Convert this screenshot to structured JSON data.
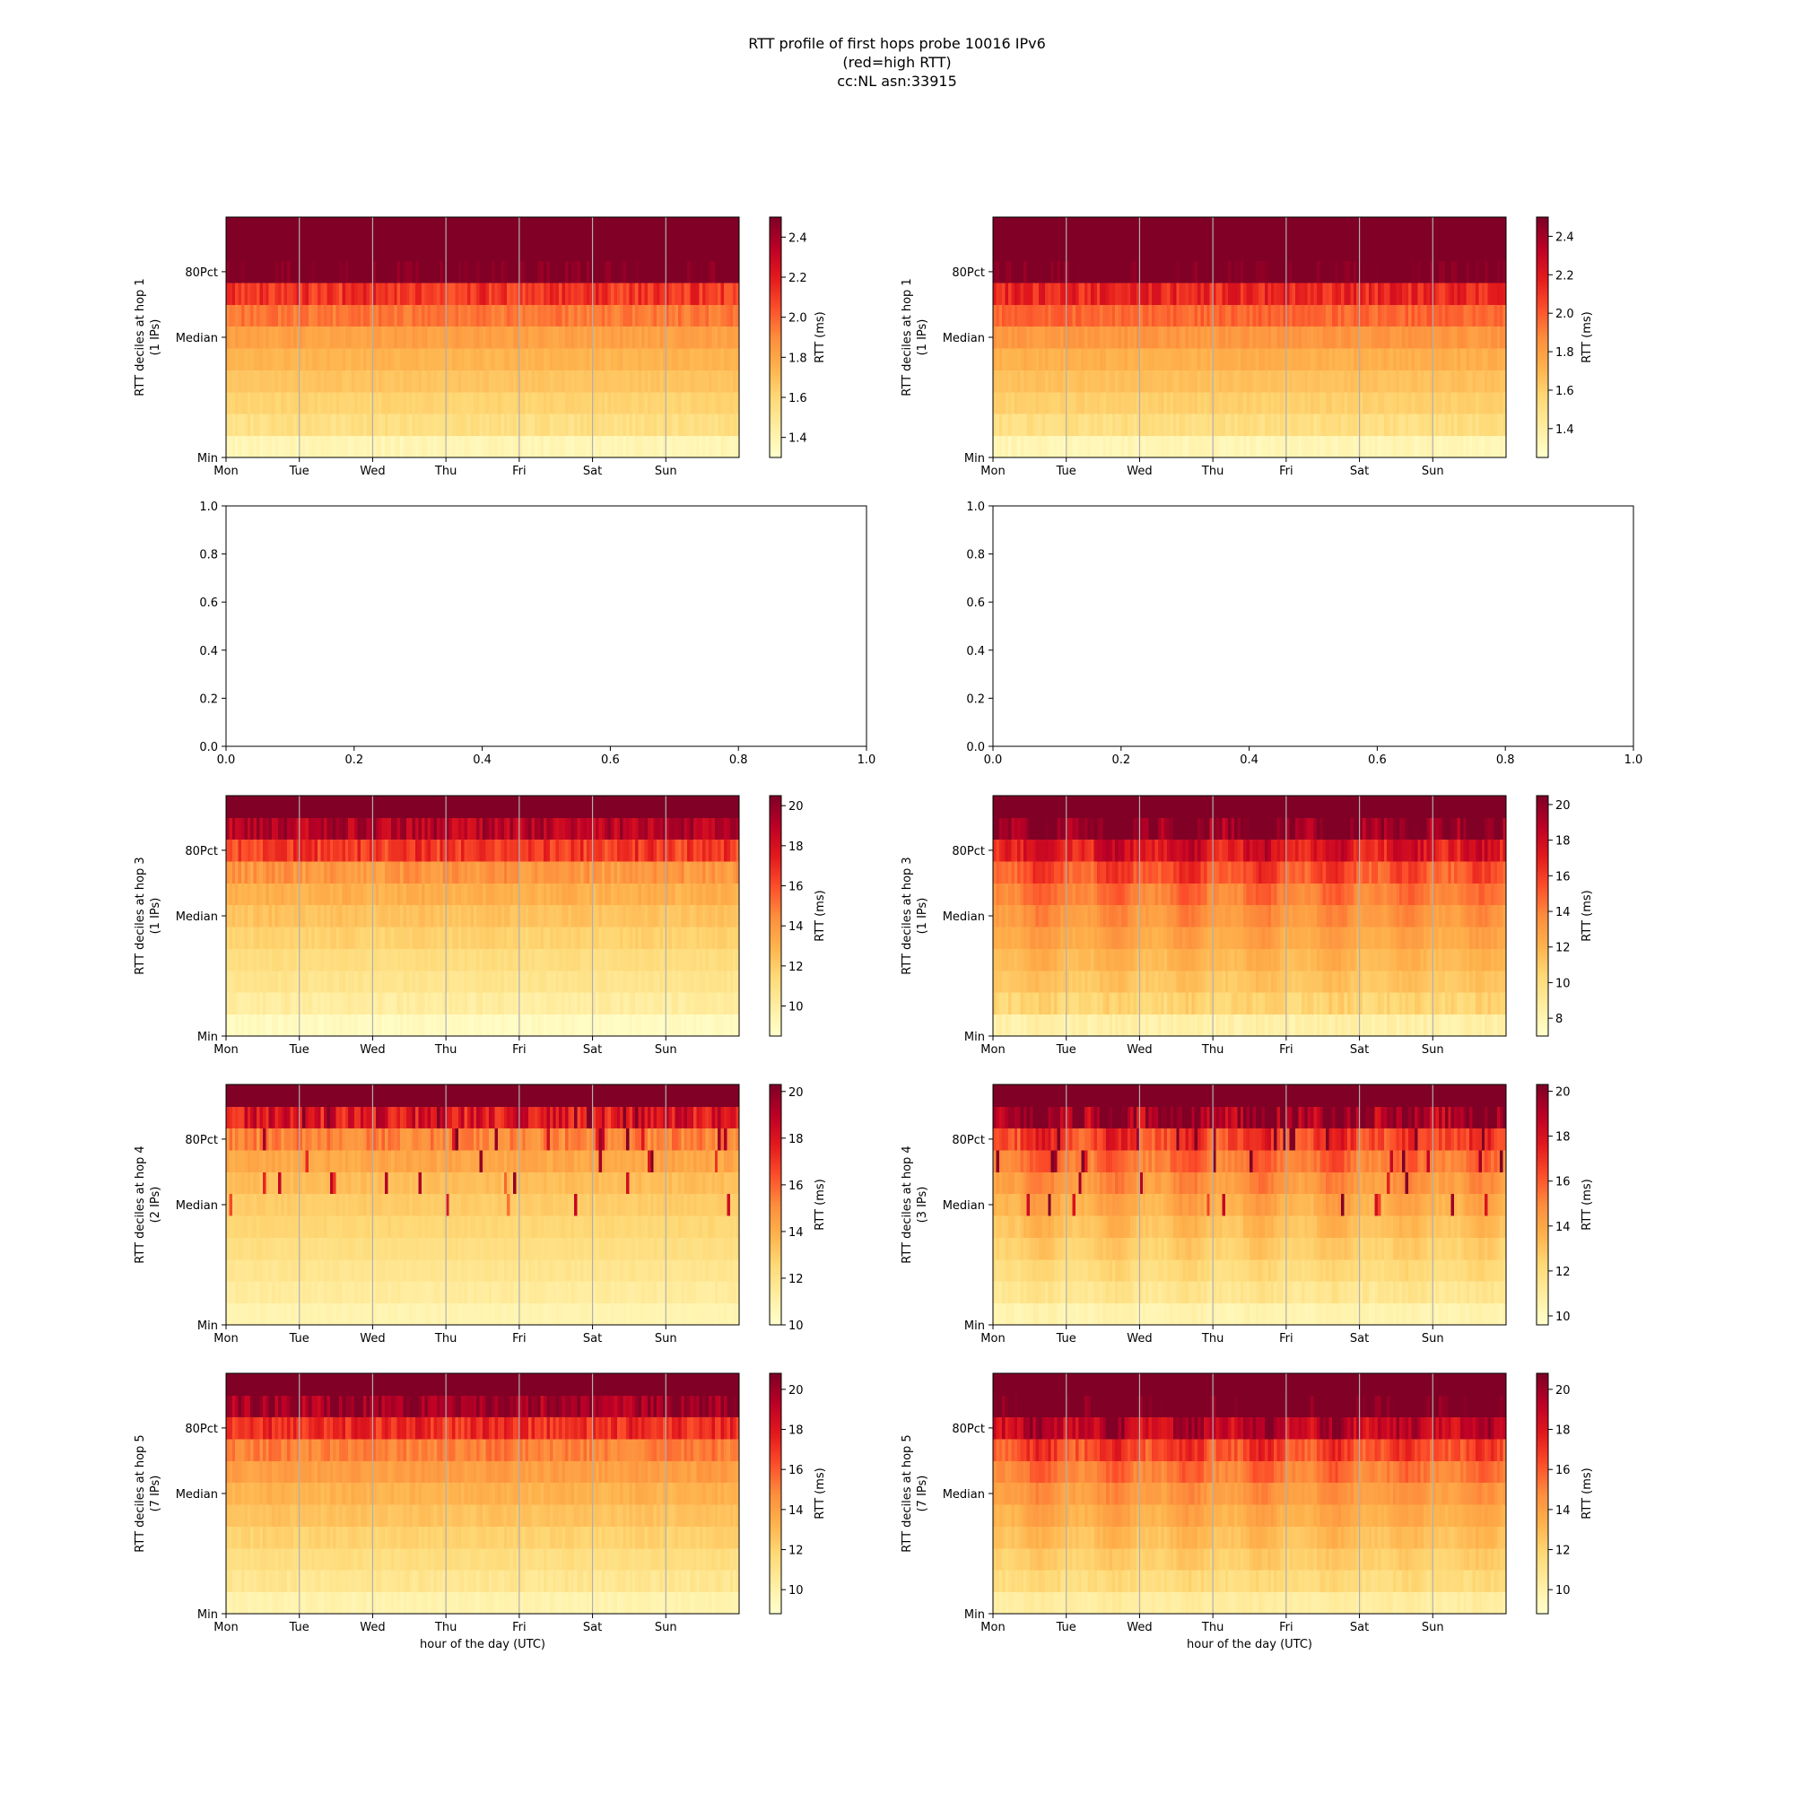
{
  "figure": {
    "title_lines": [
      "RTT profile of first hops probe 10016 IPv6",
      "(red=high RTT)",
      "cc:NL asn:33915"
    ]
  },
  "colors": {
    "colormap": [
      "#ffffcc",
      "#ffeda0",
      "#fed976",
      "#feb24c",
      "#fd8d3c",
      "#fc4e2a",
      "#e31a1c",
      "#bd0026",
      "#800026"
    ],
    "gridline": "#b0b0b0"
  },
  "chart_data": [
    {
      "type": "heatmap",
      "panel": "row1-left",
      "ylabel": "RTT deciles at hop 1\n(1 IPs)",
      "ytick_labels": [
        "Min",
        "Median",
        "80Pct"
      ],
      "xtick_labels": [
        "Mon",
        "Tue",
        "Wed",
        "Thu",
        "Fri",
        "Sat",
        "Sun"
      ],
      "xlabel": "",
      "colorbar": {
        "label": "RTT (ms)",
        "vmin": 1.3,
        "vmax": 2.5,
        "ticks": [
          1.4,
          1.6,
          1.8,
          2.0,
          2.2,
          2.4
        ]
      },
      "decile_rtt_ms": [
        1.38,
        1.55,
        1.62,
        1.68,
        1.74,
        1.82,
        1.95,
        2.12,
        2.55,
        2.8,
        2.9
      ],
      "pattern": "flat",
      "seed": 11
    },
    {
      "type": "heatmap",
      "panel": "row1-right",
      "ylabel": "RTT deciles at hop 1\n(1 IPs)",
      "ytick_labels": [
        "Min",
        "Median",
        "80Pct"
      ],
      "xtick_labels": [
        "Mon",
        "Tue",
        "Wed",
        "Thu",
        "Fri",
        "Sat",
        "Sun"
      ],
      "xlabel": "",
      "colorbar": {
        "label": "RTT (ms)",
        "vmin": 1.25,
        "vmax": 2.5,
        "ticks": [
          1.4,
          1.6,
          1.8,
          2.0,
          2.2,
          2.4
        ]
      },
      "decile_rtt_ms": [
        1.33,
        1.52,
        1.6,
        1.66,
        1.73,
        1.83,
        1.97,
        2.15,
        2.55,
        2.8,
        2.9
      ],
      "pattern": "flat",
      "seed": 23
    },
    {
      "type": "empty",
      "panel": "row2-left",
      "xtick_labels": [
        "0.0",
        "0.2",
        "0.4",
        "0.6",
        "0.8",
        "1.0"
      ],
      "ytick_labels": [
        "0.0",
        "0.2",
        "0.4",
        "0.6",
        "0.8",
        "1.0"
      ],
      "xlim": [
        0,
        1
      ],
      "ylim": [
        0,
        1
      ]
    },
    {
      "type": "empty",
      "panel": "row2-right",
      "xtick_labels": [
        "0.0",
        "0.2",
        "0.4",
        "0.6",
        "0.8",
        "1.0"
      ],
      "ytick_labels": [
        "0.0",
        "0.2",
        "0.4",
        "0.6",
        "0.8",
        "1.0"
      ],
      "xlim": [
        0,
        1
      ],
      "ylim": [
        0,
        1
      ]
    },
    {
      "type": "heatmap",
      "panel": "row3-left",
      "ylabel": "RTT deciles at hop 3\n(1 IPs)",
      "ytick_labels": [
        "Min",
        "Median",
        "80Pct"
      ],
      "xtick_labels": [
        "Mon",
        "Tue",
        "Wed",
        "Thu",
        "Fri",
        "Sat",
        "Sun"
      ],
      "xlabel": "",
      "colorbar": {
        "label": "RTT (ms)",
        "vmin": 8.5,
        "vmax": 20.5,
        "ticks": [
          10,
          12,
          14,
          16,
          18,
          20
        ]
      },
      "decile_rtt_ms": [
        8.9,
        10.0,
        10.6,
        11.1,
        11.7,
        12.3,
        13.0,
        14.0,
        16.5,
        19.0,
        22.0
      ],
      "pattern": "mild",
      "seed": 37
    },
    {
      "type": "heatmap",
      "panel": "row3-right",
      "ylabel": "RTT deciles at hop 3\n(1 IPs)",
      "ytick_labels": [
        "Min",
        "Median",
        "80Pct"
      ],
      "xtick_labels": [
        "Mon",
        "Tue",
        "Wed",
        "Thu",
        "Fri",
        "Sat",
        "Sun"
      ],
      "xlabel": "",
      "colorbar": {
        "label": "RTT (ms)",
        "vmin": 7,
        "vmax": 20.5,
        "ticks": [
          8,
          10,
          12,
          14,
          16,
          18,
          20
        ]
      },
      "decile_rtt_ms": [
        8.3,
        10.3,
        11.0,
        11.6,
        12.2,
        12.9,
        13.7,
        14.8,
        16.8,
        19.5,
        23.0
      ],
      "pattern": "diurnal",
      "seed": 41
    },
    {
      "type": "heatmap",
      "panel": "row4-left",
      "ylabel": "RTT deciles at hop 4\n(2 IPs)",
      "ytick_labels": [
        "Min",
        "Median",
        "80Pct"
      ],
      "xtick_labels": [
        "Mon",
        "Tue",
        "Wed",
        "Thu",
        "Fri",
        "Sat",
        "Sun"
      ],
      "xlabel": "",
      "colorbar": {
        "label": "RTT (ms)",
        "vmin": 10,
        "vmax": 20.3,
        "ticks": [
          10,
          12,
          14,
          16,
          18,
          20
        ]
      },
      "decile_rtt_ms": [
        10.8,
        11.4,
        11.8,
        12.2,
        12.6,
        13.0,
        13.5,
        14.2,
        15.3,
        18.0,
        22.0
      ],
      "pattern": "spiky",
      "seed": 53
    },
    {
      "type": "heatmap",
      "panel": "row4-right",
      "ylabel": "RTT deciles at hop 4\n(3 IPs)",
      "ytick_labels": [
        "Min",
        "Median",
        "80Pct"
      ],
      "xtick_labels": [
        "Mon",
        "Tue",
        "Wed",
        "Thu",
        "Fri",
        "Sat",
        "Sun"
      ],
      "xlabel": "",
      "colorbar": {
        "label": "RTT (ms)",
        "vmin": 9.6,
        "vmax": 20.3,
        "ticks": [
          10,
          12,
          14,
          16,
          18,
          20
        ]
      },
      "decile_rtt_ms": [
        10.4,
        11.3,
        11.9,
        12.4,
        12.9,
        13.5,
        14.2,
        15.0,
        16.2,
        19.0,
        23.0
      ],
      "pattern": "diurnal-spiky",
      "seed": 67
    },
    {
      "type": "heatmap",
      "panel": "row5-left",
      "ylabel": "RTT deciles at hop 5\n(7 IPs)",
      "ytick_labels": [
        "Min",
        "Median",
        "80Pct"
      ],
      "xtick_labels": [
        "Mon",
        "Tue",
        "Wed",
        "Thu",
        "Fri",
        "Sat",
        "Sun"
      ],
      "xlabel": "hour of the day (UTC)",
      "colorbar": {
        "label": "RTT (ms)",
        "vmin": 8.8,
        "vmax": 20.8,
        "ticks": [
          10,
          12,
          14,
          16,
          18,
          20
        ]
      },
      "decile_rtt_ms": [
        9.8,
        10.8,
        11.4,
        12.0,
        12.6,
        13.2,
        14.0,
        15.0,
        17.2,
        19.8,
        22.5
      ],
      "pattern": "mild",
      "seed": 71
    },
    {
      "type": "heatmap",
      "panel": "row5-right",
      "ylabel": "RTT deciles at hop 5\n(7 IPs)",
      "ytick_labels": [
        "Min",
        "Median",
        "80Pct"
      ],
      "xtick_labels": [
        "Mon",
        "Tue",
        "Wed",
        "Thu",
        "Fri",
        "Sat",
        "Sun"
      ],
      "xlabel": "hour of the day (UTC)",
      "colorbar": {
        "label": "RTT (ms)",
        "vmin": 8.8,
        "vmax": 20.8,
        "ticks": [
          10,
          12,
          14,
          16,
          18,
          20
        ]
      },
      "decile_rtt_ms": [
        10.2,
        11.4,
        12.0,
        12.6,
        13.2,
        13.9,
        14.8,
        16.0,
        18.5,
        21.0,
        23.5
      ],
      "pattern": "diurnal",
      "seed": 83
    }
  ]
}
